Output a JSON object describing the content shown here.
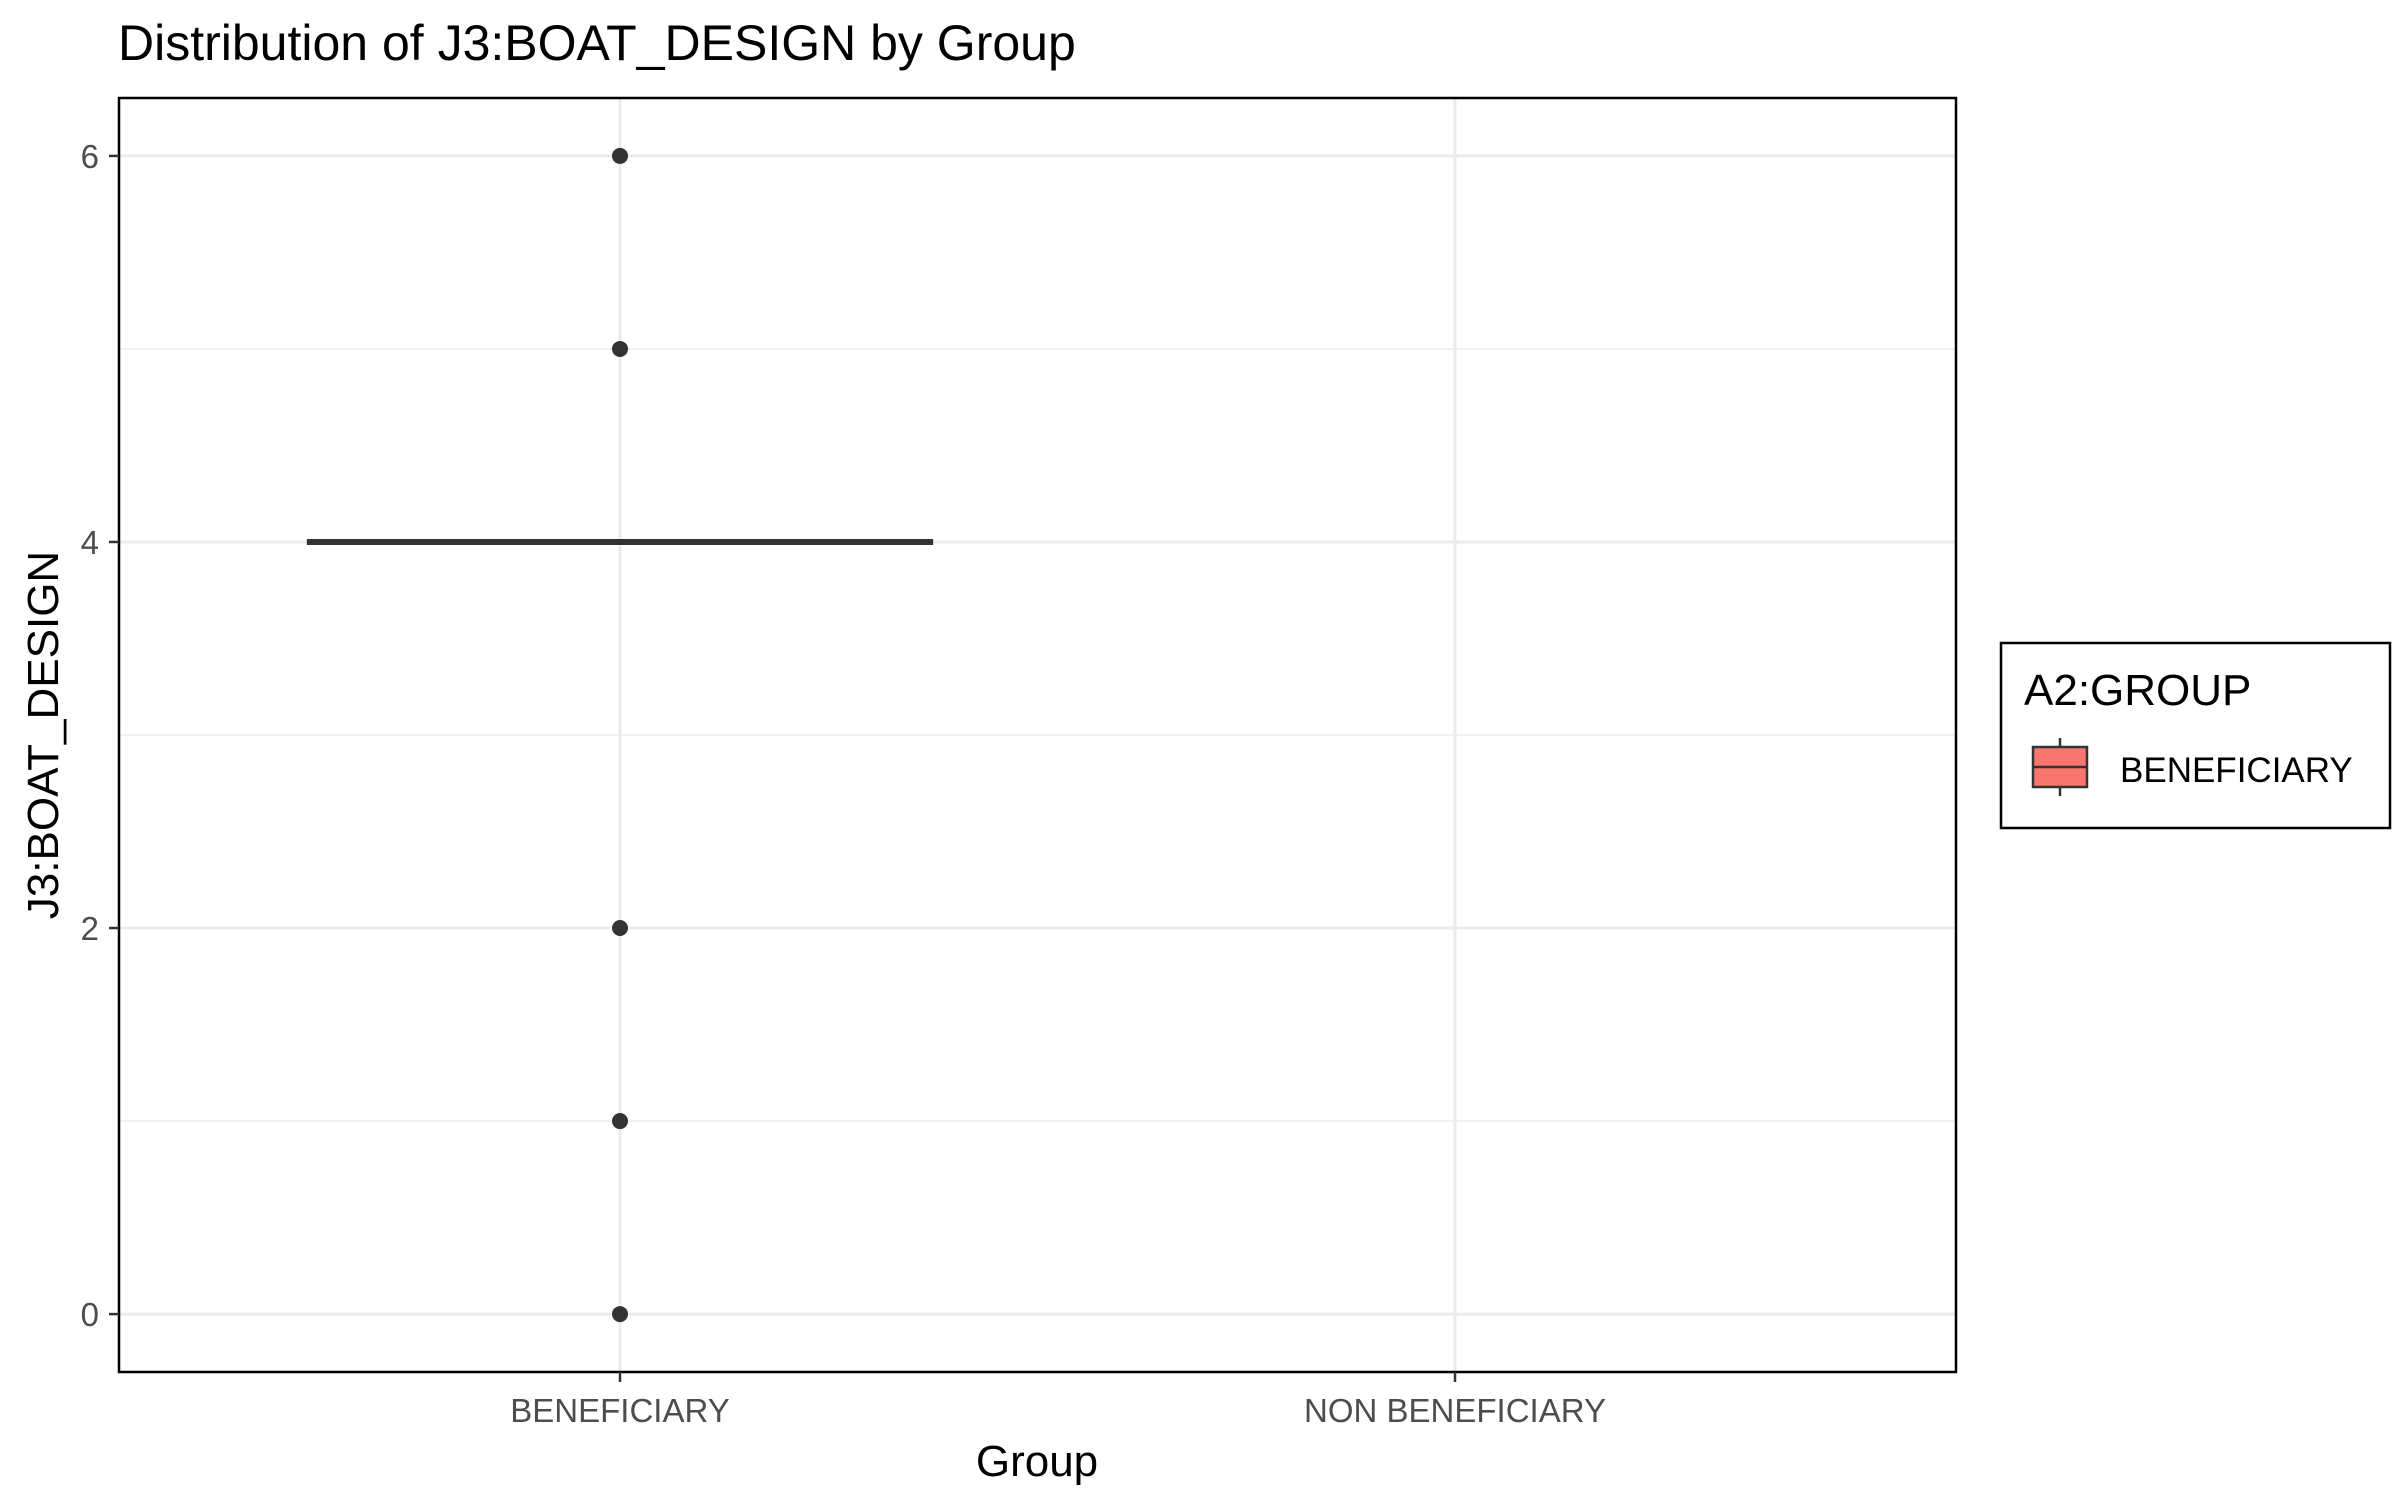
{
  "chart_data": {
    "type": "boxplot",
    "title": "Distribution of J3:BOAT_DESIGN by Group",
    "xlabel": "Group",
    "ylabel": "J3:BOAT_DESIGN",
    "categories": [
      "BENEFICIARY",
      "NON BENEFICIARY"
    ],
    "ylim": [
      -0.3,
      6.3
    ],
    "yticks": [
      0,
      2,
      4,
      6
    ],
    "grid": true,
    "boxes": [
      {
        "category": "BENEFICIARY",
        "q1": 4,
        "median": 4,
        "q3": 4,
        "whisker_low": 4,
        "whisker_high": 4,
        "outliers": [
          6,
          5,
          2,
          1,
          0
        ]
      }
    ],
    "legend": {
      "title": "A2:GROUP",
      "position": "right",
      "entries": [
        {
          "label": "BENEFICIARY",
          "color": "#f8766d"
        }
      ]
    },
    "colors": {
      "box_fill": "#f8766d",
      "box_line": "#333333",
      "grid": "#ebebeb",
      "panel_border": "#000000"
    }
  }
}
